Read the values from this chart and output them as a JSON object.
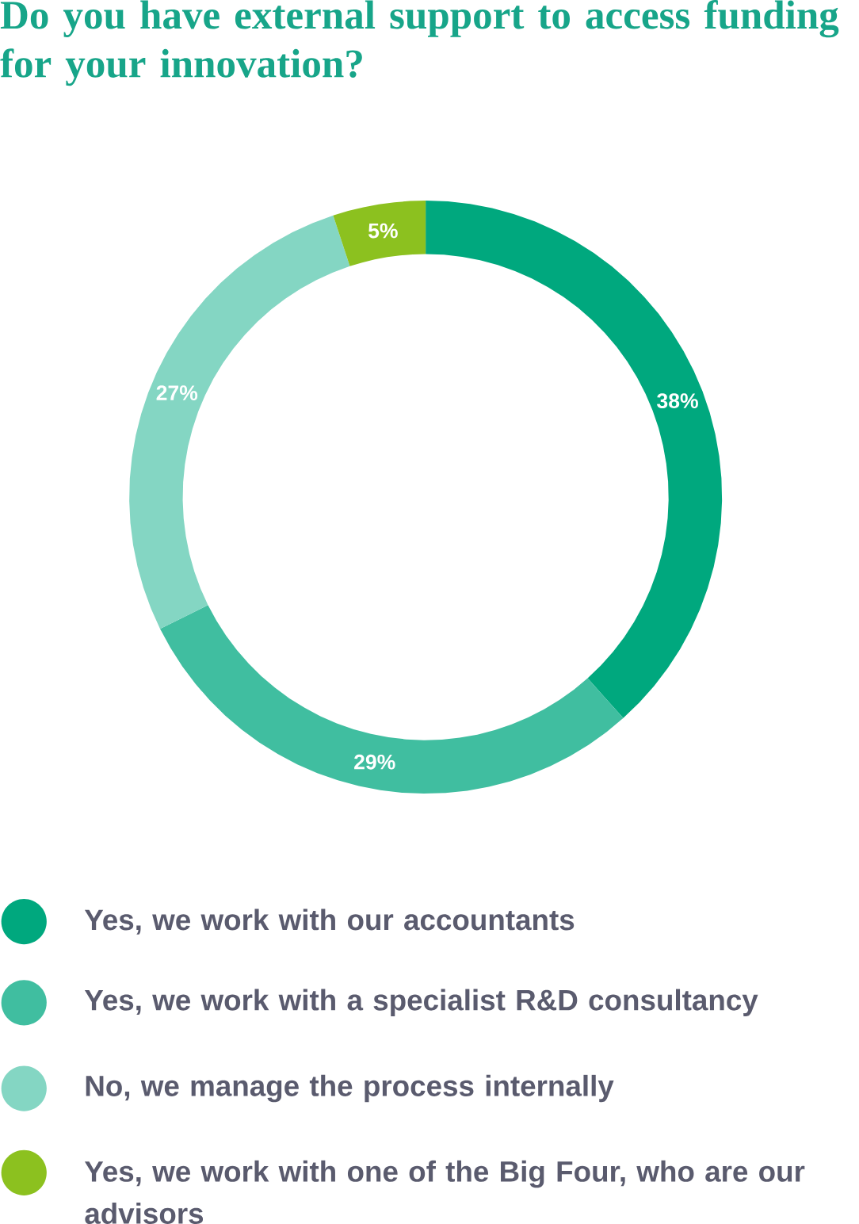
{
  "chart_data": {
    "type": "donut",
    "title": "Do you have external support to access funding for your innovation?",
    "categories": [
      "Yes, we work with our accountants",
      "Yes, we work with a specialist R&D consultancy",
      "No, we manage the process internally",
      "Yes, we work with one of the Big Four, who are our advisors"
    ],
    "values": [
      38,
      29,
      27,
      5
    ],
    "colors": [
      "#00a87e",
      "#40bea0",
      "#84d6c3",
      "#8cc11f"
    ],
    "value_labels": [
      "38%",
      "29%",
      "27%",
      "5%"
    ],
    "legend": "bottom"
  }
}
